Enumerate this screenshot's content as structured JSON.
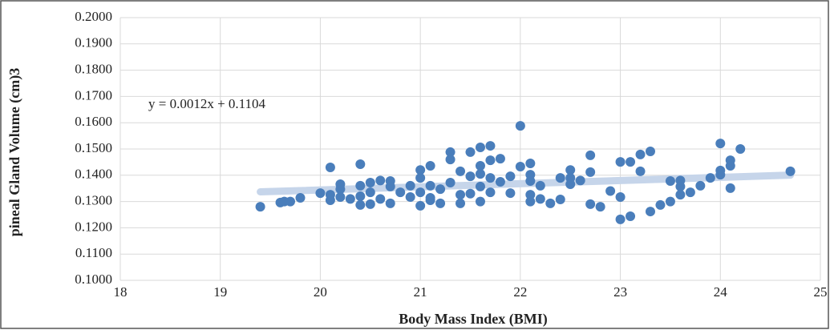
{
  "chart_data": {
    "type": "scatter",
    "annotation": "y = 0.0012x + 0.1104",
    "xlabel": "Body Mass Index (BMI)",
    "ylabel": "pineal Gland Volume (cm)3",
    "color": "#4a7ebb",
    "trendline": {
      "slope": 0.0012,
      "intercept": 0.1104,
      "x_range": [
        19.4,
        24.7
      ],
      "color": "#c6d5ea"
    },
    "grid": true,
    "xlim": [
      18,
      25
    ],
    "xticks": [
      18,
      19,
      20,
      21,
      22,
      23,
      24,
      25
    ],
    "ylim": [
      0.1,
      0.2
    ],
    "yticks": [
      {
        "value": 0.1,
        "label": "0.1000"
      },
      {
        "value": 0.11,
        "label": "0.1100"
      },
      {
        "value": 0.12,
        "label": "0.1200"
      },
      {
        "value": 0.13,
        "label": "0.1300"
      },
      {
        "value": 0.14,
        "label": "0.1400"
      },
      {
        "value": 0.15,
        "label": "0.1500"
      },
      {
        "value": 0.16,
        "label": "0.1600"
      },
      {
        "value": 0.17,
        "label": "0.1700"
      },
      {
        "value": 0.18,
        "label": "0.1800"
      },
      {
        "value": 0.19,
        "label": "0.1900"
      },
      {
        "value": 0.2,
        "label": "0.2000"
      }
    ],
    "x": [
      19.4,
      19.6,
      19.64,
      19.7,
      19.8,
      20.0,
      20.1,
      20.1,
      20.1,
      20.2,
      20.2,
      20.2,
      20.3,
      20.4,
      20.4,
      20.4,
      20.4,
      20.5,
      20.5,
      20.5,
      20.6,
      20.6,
      20.7,
      20.7,
      20.7,
      20.8,
      20.9,
      20.9,
      21.0,
      21.0,
      21.0,
      21.0,
      21.1,
      21.1,
      21.1,
      21.1,
      21.2,
      21.2,
      21.3,
      21.3,
      21.3,
      21.4,
      21.4,
      21.4,
      21.5,
      21.5,
      21.5,
      21.6,
      21.6,
      21.6,
      21.6,
      21.6,
      21.7,
      21.7,
      21.7,
      21.7,
      21.8,
      21.8,
      21.9,
      21.9,
      22.0,
      22.0,
      22.1,
      22.1,
      22.1,
      22.1,
      22.1,
      22.2,
      22.2,
      22.3,
      22.4,
      22.4,
      22.5,
      22.5,
      22.5,
      22.6,
      22.7,
      22.7,
      22.7,
      22.8,
      22.9,
      23.0,
      23.0,
      23.0,
      23.1,
      23.1,
      23.2,
      23.2,
      23.3,
      23.3,
      23.4,
      23.5,
      23.5,
      23.6,
      23.6,
      23.6,
      23.7,
      23.8,
      23.9,
      24.0,
      24.0,
      24.0,
      24.1,
      24.1,
      24.1,
      24.2,
      24.7
    ],
    "y": [
      0.128,
      0.1296,
      0.13,
      0.13,
      0.1314,
      0.1332,
      0.143,
      0.1305,
      0.1326,
      0.1366,
      0.1347,
      0.1317,
      0.131,
      0.1442,
      0.136,
      0.132,
      0.1287,
      0.1372,
      0.1335,
      0.129,
      0.138,
      0.131,
      0.1378,
      0.1357,
      0.1293,
      0.1335,
      0.136,
      0.1317,
      0.142,
      0.139,
      0.1335,
      0.1284,
      0.1436,
      0.136,
      0.1314,
      0.1305,
      0.1347,
      0.1293,
      0.1488,
      0.146,
      0.1372,
      0.1415,
      0.1326,
      0.1293,
      0.1488,
      0.1396,
      0.133,
      0.1506,
      0.1436,
      0.1405,
      0.1357,
      0.13,
      0.1512,
      0.1457,
      0.139,
      0.1335,
      0.1463,
      0.1375,
      0.1396,
      0.1332,
      0.1588,
      0.1433,
      0.1445,
      0.1402,
      0.1378,
      0.1326,
      0.13,
      0.136,
      0.131,
      0.1293,
      0.139,
      0.1308,
      0.142,
      0.139,
      0.1366,
      0.138,
      0.1476,
      0.1412,
      0.129,
      0.128,
      0.134,
      0.1451,
      0.1317,
      0.1232,
      0.1451,
      0.1244,
      0.1479,
      0.1415,
      0.1491,
      0.1262,
      0.1287,
      0.1378,
      0.13,
      0.138,
      0.1357,
      0.1326,
      0.1335,
      0.136,
      0.139,
      0.1521,
      0.1418,
      0.1402,
      0.1457,
      0.1436,
      0.1351,
      0.15,
      0.1415
    ]
  }
}
